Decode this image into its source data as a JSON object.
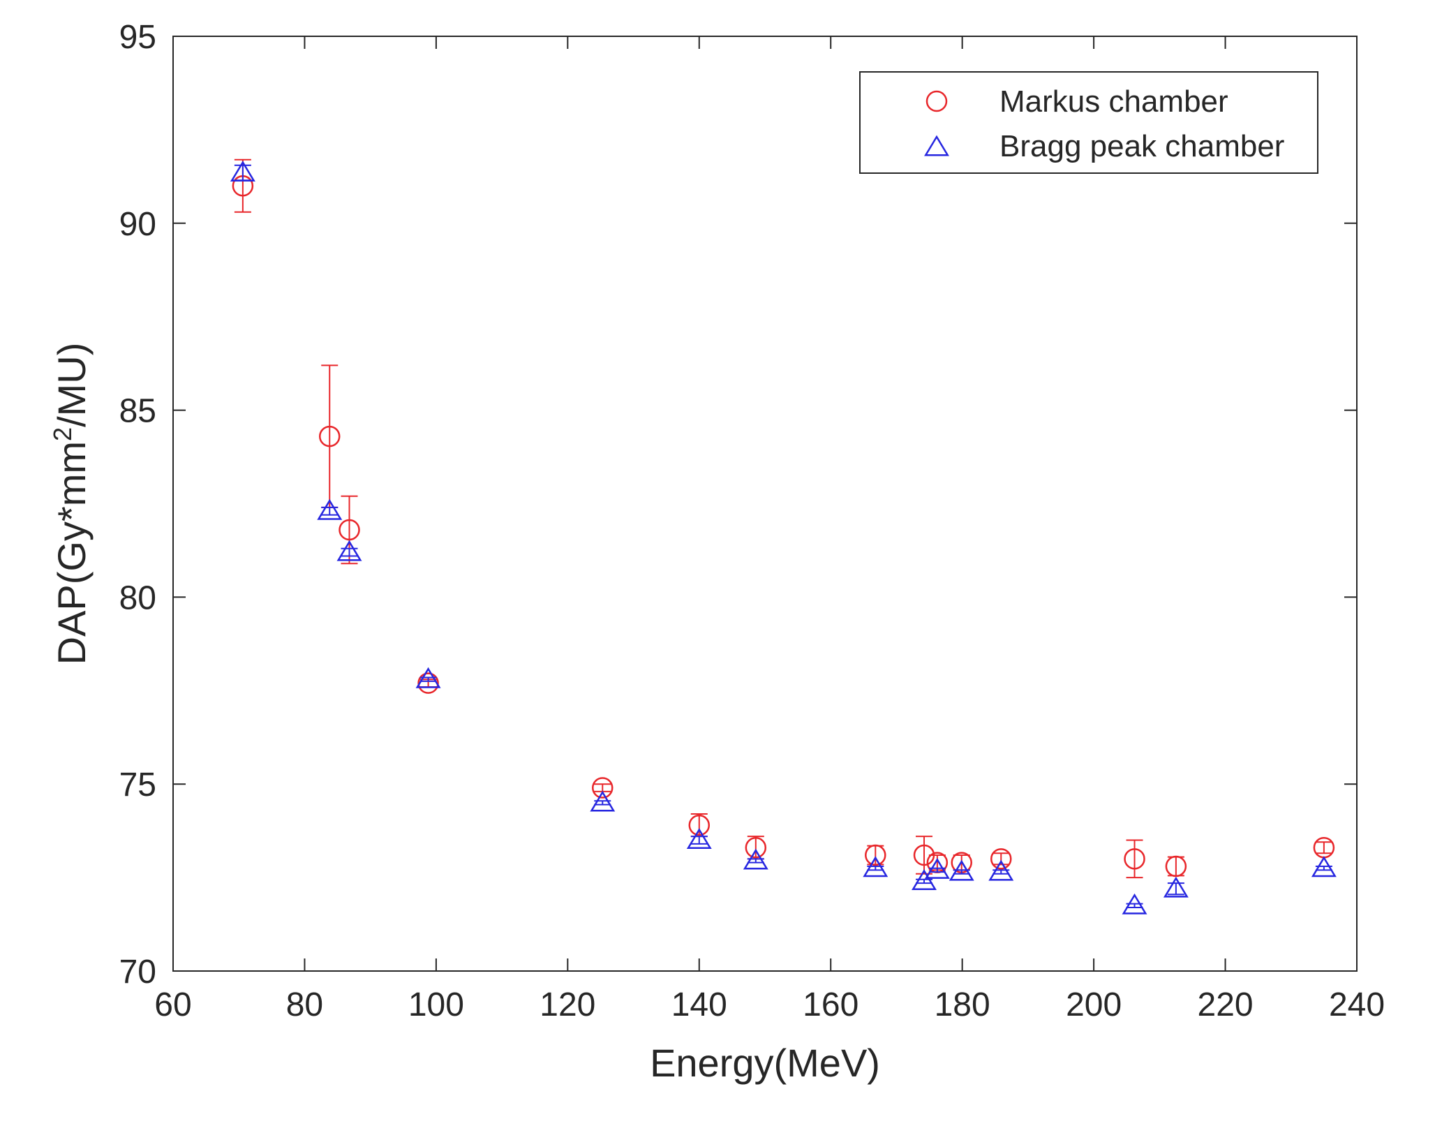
{
  "chart_data": {
    "type": "scatter",
    "title": "",
    "xlabel": "Energy(MeV)",
    "ylabel": {
      "prefix": "DAP(Gy*mm",
      "superscript": "2",
      "suffix": "/MU)"
    },
    "xlim": [
      60,
      240
    ],
    "ylim": [
      70,
      95
    ],
    "xticks": [
      60,
      80,
      100,
      120,
      140,
      160,
      180,
      200,
      220,
      240
    ],
    "yticks": [
      70,
      75,
      80,
      85,
      90,
      95
    ],
    "grid": false,
    "legend_position": "top-right",
    "series": [
      {
        "name": "Markus chamber",
        "marker": "circle",
        "color": "#e8262a",
        "points": [
          {
            "x": 70.6,
            "y": 91.0,
            "err": 0.7
          },
          {
            "x": 83.8,
            "y": 84.3,
            "err": 1.9
          },
          {
            "x": 86.8,
            "y": 81.8,
            "err": 0.9
          },
          {
            "x": 98.8,
            "y": 77.7,
            "err": 0.1
          },
          {
            "x": 125.3,
            "y": 74.9,
            "err": 0.1
          },
          {
            "x": 140.0,
            "y": 73.9,
            "err": 0.3
          },
          {
            "x": 148.6,
            "y": 73.3,
            "err": 0.3
          },
          {
            "x": 166.8,
            "y": 73.1,
            "err": 0.25
          },
          {
            "x": 174.2,
            "y": 73.1,
            "err": 0.5
          },
          {
            "x": 176.2,
            "y": 72.9,
            "err": 0.2
          },
          {
            "x": 179.9,
            "y": 72.9,
            "err": 0.2
          },
          {
            "x": 185.9,
            "y": 73.0,
            "err": 0.15
          },
          {
            "x": 206.2,
            "y": 73.0,
            "err": 0.5
          },
          {
            "x": 212.5,
            "y": 72.8,
            "err": 0.25
          },
          {
            "x": 235.0,
            "y": 73.3,
            "err": 0.15
          }
        ]
      },
      {
        "name": "Bragg peak chamber",
        "marker": "triangle",
        "color": "#2626e0",
        "points": [
          {
            "x": 70.6,
            "y": 91.35,
            "err": 0.2
          },
          {
            "x": 83.8,
            "y": 82.3,
            "err": 0.1
          },
          {
            "x": 86.8,
            "y": 81.2,
            "err": 0.1
          },
          {
            "x": 98.8,
            "y": 77.8,
            "err": 0.05
          },
          {
            "x": 125.3,
            "y": 74.5,
            "err": 0.05
          },
          {
            "x": 140.0,
            "y": 73.5,
            "err": 0.1
          },
          {
            "x": 148.6,
            "y": 72.95,
            "err": 0.05
          },
          {
            "x": 166.8,
            "y": 72.75,
            "err": 0.05
          },
          {
            "x": 174.2,
            "y": 72.4,
            "err": 0.05
          },
          {
            "x": 176.2,
            "y": 72.7,
            "err": 0.05
          },
          {
            "x": 179.9,
            "y": 72.65,
            "err": 0.05
          },
          {
            "x": 185.9,
            "y": 72.65,
            "err": 0.05
          },
          {
            "x": 206.2,
            "y": 71.75,
            "err": 0.05
          },
          {
            "x": 212.5,
            "y": 72.2,
            "err": 0.15
          },
          {
            "x": 235.0,
            "y": 72.75,
            "err": 0.05
          }
        ]
      }
    ]
  }
}
